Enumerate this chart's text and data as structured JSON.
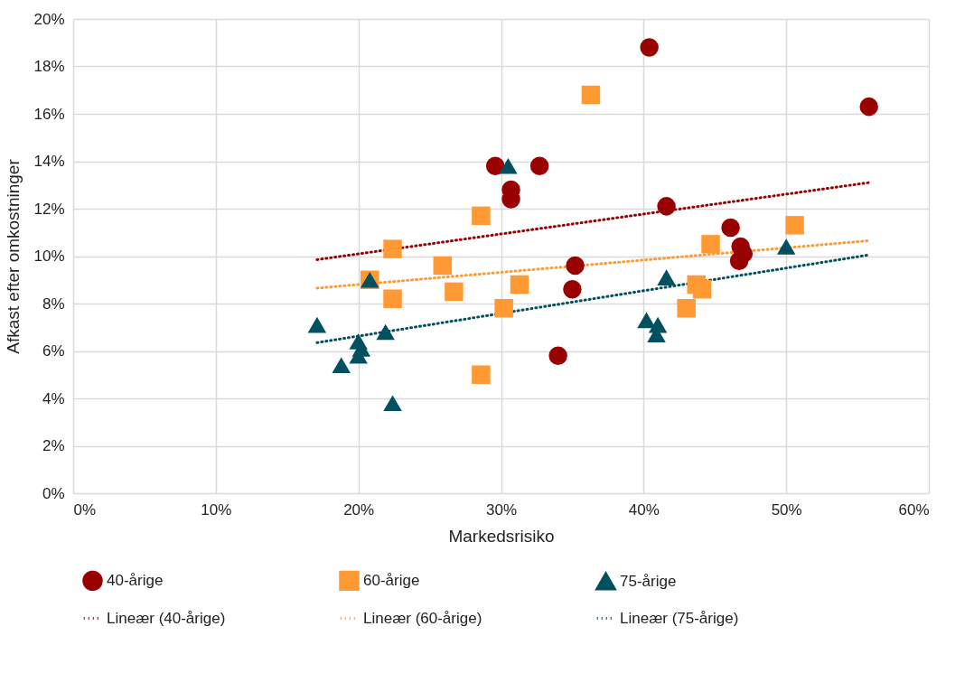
{
  "chart_data": {
    "type": "scatter",
    "xlabel": "Markedsrisiko",
    "ylabel": "Afkast efter omkostninger",
    "xlim": [
      0,
      60
    ],
    "ylim": [
      0,
      20
    ],
    "xticks": [
      {
        "value": 0,
        "label": "0%"
      },
      {
        "value": 10,
        "label": "10%"
      },
      {
        "value": 20,
        "label": "20%"
      },
      {
        "value": 30,
        "label": "30%"
      },
      {
        "value": 40,
        "label": "40%"
      },
      {
        "value": 50,
        "label": "50%"
      },
      {
        "value": 60,
        "label": "60%"
      }
    ],
    "yticks": [
      {
        "value": 0,
        "label": "0%"
      },
      {
        "value": 2,
        "label": "2%"
      },
      {
        "value": 4,
        "label": "4%"
      },
      {
        "value": 6,
        "label": "6%"
      },
      {
        "value": 8,
        "label": "8%"
      },
      {
        "value": 10,
        "label": "10%"
      },
      {
        "value": 12,
        "label": "12%"
      },
      {
        "value": 14,
        "label": "14%"
      },
      {
        "value": 16,
        "label": "16%"
      },
      {
        "value": 18,
        "label": "18%"
      },
      {
        "value": 20,
        "label": "20%"
      }
    ],
    "grid": true,
    "legend": "bottom",
    "series": [
      {
        "name": "40-årige",
        "color": "#990000",
        "marker": "circle",
        "x": [
          29.6,
          32.7,
          30.7,
          30.7,
          40.4,
          55.8,
          41.6,
          35.2,
          35.0,
          34.0,
          46.1,
          46.8,
          47.0,
          46.7
        ],
        "values": [
          13.8,
          13.8,
          12.8,
          12.4,
          18.8,
          16.3,
          12.1,
          9.6,
          8.6,
          5.8,
          11.2,
          10.4,
          10.1,
          9.8
        ]
      },
      {
        "name": "60-årige",
        "color": "#ff9933",
        "marker": "square",
        "x": [
          36.3,
          28.6,
          22.4,
          25.9,
          20.8,
          22.4,
          26.7,
          31.3,
          30.2,
          28.6,
          44.7,
          50.6,
          43.7,
          44.1,
          43.0
        ],
        "values": [
          16.8,
          11.7,
          10.3,
          9.6,
          9.0,
          8.2,
          8.5,
          8.8,
          7.8,
          5.0,
          10.5,
          11.3,
          8.8,
          8.6,
          7.8
        ]
      },
      {
        "name": "75-årige",
        "color": "#005060",
        "marker": "triangle",
        "x": [
          17.1,
          18.8,
          20.0,
          20.2,
          20.0,
          21.9,
          22.4,
          20.8,
          30.5,
          40.2,
          41.0,
          40.9,
          41.6,
          50.0
        ],
        "values": [
          7.1,
          5.4,
          6.4,
          6.1,
          5.8,
          6.8,
          3.8,
          9.0,
          13.8,
          7.3,
          7.1,
          6.7,
          9.1,
          10.4
        ]
      },
      {
        "name": "Lineær (40-årige)",
        "color": "#990000",
        "type": "line",
        "marker": "none",
        "line_style": "dotted",
        "x": [
          17.1,
          55.8
        ],
        "values": [
          9.85,
          13.1
        ]
      },
      {
        "name": "Lineær (60-årige)",
        "color": "#ff9933",
        "type": "line",
        "marker": "none",
        "line_style": "dotted",
        "x": [
          17.1,
          55.8
        ],
        "values": [
          8.65,
          10.65
        ]
      },
      {
        "name": "Lineær (75-årige)",
        "color": "#005060",
        "type": "line",
        "marker": "none",
        "line_style": "dotted",
        "x": [
          17.1,
          55.8
        ],
        "values": [
          6.35,
          10.05
        ]
      }
    ]
  }
}
